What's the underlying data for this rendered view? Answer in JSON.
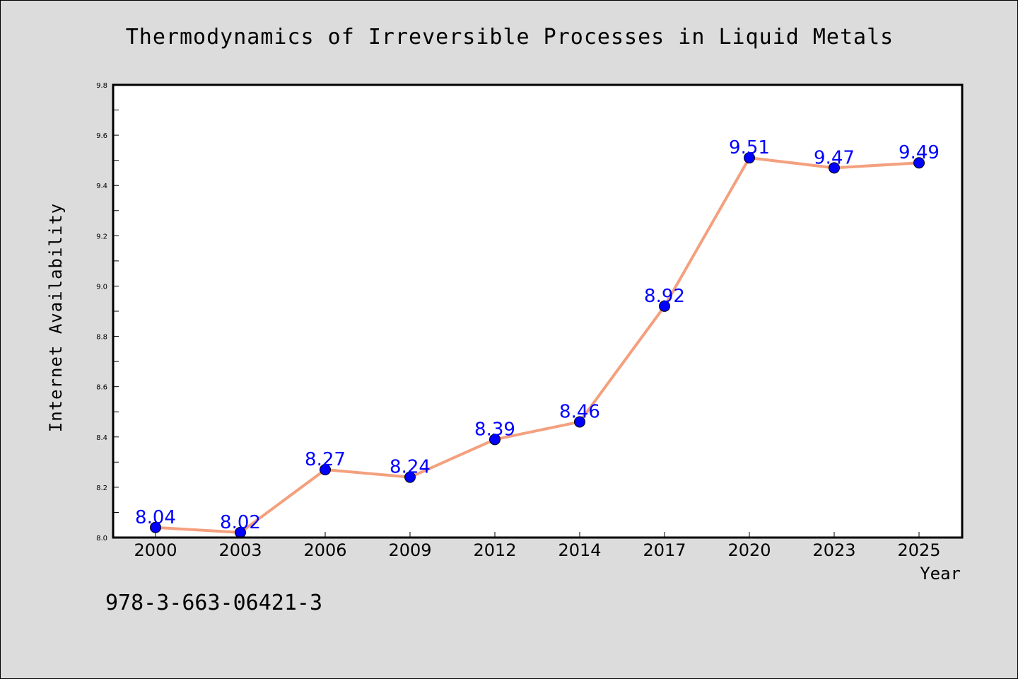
{
  "chart_data": {
    "type": "line",
    "title": "Thermodynamics of Irreversible Processes in Liquid Metals",
    "xlabel": "Year",
    "ylabel": "Internet Availability",
    "categories": [
      "2000",
      "2003",
      "2006",
      "2009",
      "2012",
      "2014",
      "2017",
      "2020",
      "2023",
      "2025"
    ],
    "series": [
      {
        "values": [
          8.04,
          8.02,
          8.27,
          8.24,
          8.39,
          8.46,
          8.92,
          9.51,
          9.47,
          9.49
        ],
        "data_labels": [
          "8.04",
          "8.02",
          "8.27",
          "8.24",
          "8.39",
          "8.46",
          "8.92",
          "9.51",
          "9.47",
          "9.49"
        ],
        "line_color": "#f4a07e",
        "marker_color": "#0000ff",
        "label_color": "#0000ff"
      }
    ],
    "ylim": [
      8.0,
      9.8
    ],
    "yticks": [
      8.0,
      8.2,
      8.4,
      8.6,
      8.8,
      9.0,
      9.2,
      9.4,
      9.6,
      9.8
    ],
    "ytick_labels": [
      "8.0",
      "8.2",
      "8.4",
      "8.6",
      "8.8",
      "9.0",
      "9.2",
      "9.4",
      "9.6",
      "9.8"
    ],
    "grid": false,
    "legend": "none"
  },
  "annotation": {
    "isbn": "978-3-663-06421-3"
  },
  "colors": {
    "background": "#dcdcdc",
    "plot_background": "#ffffff"
  }
}
